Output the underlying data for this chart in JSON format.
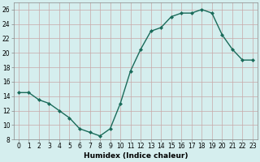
{
  "x": [
    0,
    1,
    2,
    3,
    4,
    5,
    6,
    7,
    8,
    9,
    10,
    11,
    12,
    13,
    14,
    15,
    16,
    17,
    18,
    19,
    20,
    21,
    22,
    23
  ],
  "y": [
    14.5,
    14.5,
    13.5,
    13,
    12,
    11,
    9.5,
    9,
    8.5,
    9.5,
    13,
    17.5,
    20.5,
    23,
    23.5,
    25,
    25.5,
    25.5,
    26,
    25.5,
    22.5,
    20.5,
    19,
    19
  ],
  "line_color": "#1a6b5a",
  "marker": "D",
  "marker_size": 2.0,
  "line_width": 1.0,
  "background_color": "#d5eeee",
  "grid_color": "#c8a8a8",
  "xlabel": "Humidex (Indice chaleur)",
  "tick_fontsize": 5.5,
  "xlabel_fontsize": 6.5,
  "xlim": [
    -0.5,
    23.5
  ],
  "ylim": [
    8,
    27
  ],
  "yticks": [
    8,
    10,
    12,
    14,
    16,
    18,
    20,
    22,
    24,
    26
  ],
  "xticks": [
    0,
    1,
    2,
    3,
    4,
    5,
    6,
    7,
    8,
    9,
    10,
    11,
    12,
    13,
    14,
    15,
    16,
    17,
    18,
    19,
    20,
    21,
    22,
    23
  ]
}
